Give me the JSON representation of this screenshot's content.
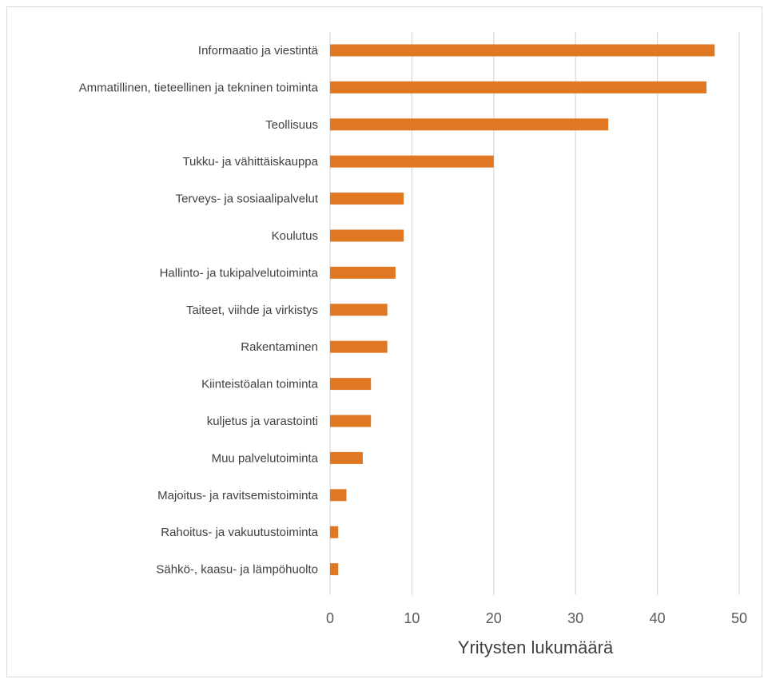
{
  "chart_data": {
    "type": "bar",
    "orientation": "horizontal",
    "categories": [
      "Informaatio ja viestintä",
      "Ammatillinen, tieteellinen ja tekninen toiminta",
      "Teollisuus",
      "Tukku- ja vähittäiskauppa",
      "Terveys- ja sosiaalipalvelut",
      "Koulutus",
      "Hallinto- ja tukipalvelutoiminta",
      "Taiteet, viihde ja virkistys",
      "Rakentaminen",
      "Kiinteistöalan toiminta",
      "kuljetus ja varastointi",
      "Muu palvelutoiminta",
      "Majoitus- ja ravitsemistoiminta",
      "Rahoitus- ja vakuutustoiminta",
      "Sähkö-, kaasu- ja lämpöhuolto"
    ],
    "values": [
      47,
      46,
      34,
      20,
      9,
      9,
      8,
      7,
      7,
      5,
      5,
      4,
      2,
      1,
      1
    ],
    "xlabel": "Yritysten lukumäärä",
    "ylabel": "",
    "xlim": [
      0,
      50
    ],
    "xticks": [
      "0",
      "10",
      "20",
      "30",
      "40",
      "50"
    ],
    "grid": true,
    "bar_color": "#e07722",
    "grid_color": "#d9d9d9"
  }
}
